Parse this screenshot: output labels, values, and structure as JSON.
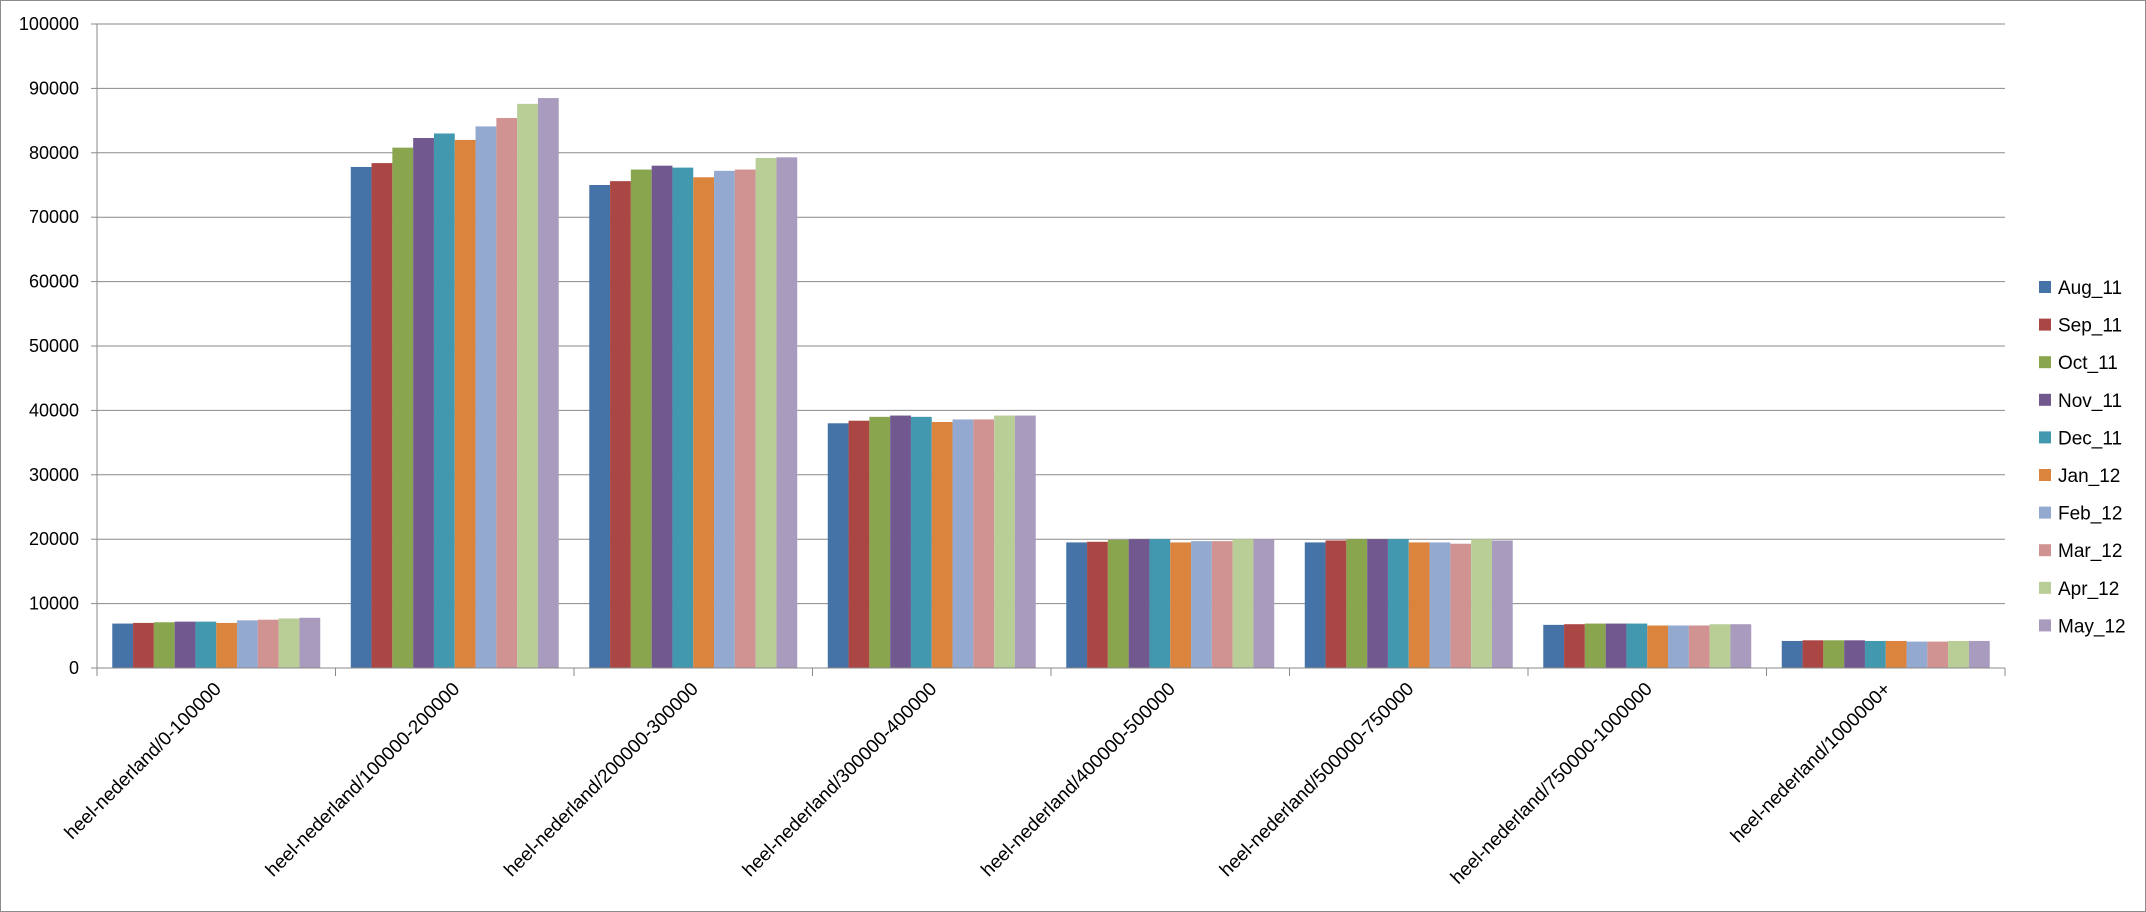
{
  "chart_data": {
    "type": "bar",
    "title": "",
    "xlabel": "",
    "ylabel": "",
    "ylim": [
      0,
      100000
    ],
    "yticks": [
      0,
      10000,
      20000,
      30000,
      40000,
      50000,
      60000,
      70000,
      80000,
      90000,
      100000
    ],
    "grid": true,
    "legend_position": "right",
    "categories": [
      "heel-nederland/0-100000",
      "heel-nederland/100000-200000",
      "heel-nederland/200000-300000",
      "heel-nederland/300000-400000",
      "heel-nederland/400000-500000",
      "heel-nederland/500000-750000",
      "heel-nederland/750000-1000000",
      "heel-nederland/1000000+"
    ],
    "series": [
      {
        "name": "Aug_11",
        "color": "#4572A7",
        "values": [
          6900,
          77800,
          75000,
          38000,
          19500,
          19500,
          6700,
          4200
        ]
      },
      {
        "name": "Sep_11",
        "color": "#AA4643",
        "values": [
          7000,
          78400,
          75600,
          38400,
          19600,
          19800,
          6800,
          4300
        ]
      },
      {
        "name": "Oct_11",
        "color": "#89A54E",
        "values": [
          7100,
          80800,
          77400,
          39000,
          19900,
          20000,
          6900,
          4300
        ]
      },
      {
        "name": "Nov_11",
        "color": "#71588F",
        "values": [
          7200,
          82300,
          78000,
          39200,
          20000,
          20000,
          6900,
          4300
        ]
      },
      {
        "name": "Dec_11",
        "color": "#4198AF",
        "values": [
          7200,
          83000,
          77700,
          39000,
          20000,
          20000,
          6900,
          4200
        ]
      },
      {
        "name": "Jan_12",
        "color": "#DB843D",
        "values": [
          7000,
          82000,
          76200,
          38200,
          19500,
          19500,
          6600,
          4200
        ]
      },
      {
        "name": "Feb_12",
        "color": "#93A9CF",
        "values": [
          7400,
          84100,
          77200,
          38600,
          19700,
          19500,
          6600,
          4100
        ]
      },
      {
        "name": "Mar_12",
        "color": "#D19392",
        "values": [
          7500,
          85400,
          77400,
          38600,
          19700,
          19300,
          6600,
          4100
        ]
      },
      {
        "name": "Apr_12",
        "color": "#B9CD96",
        "values": [
          7700,
          87600,
          79200,
          39200,
          20000,
          20000,
          6800,
          4200
        ]
      },
      {
        "name": "May_12",
        "color": "#A99BBD",
        "values": [
          7800,
          88500,
          79300,
          39200,
          20000,
          19800,
          6800,
          4200
        ]
      }
    ]
  }
}
